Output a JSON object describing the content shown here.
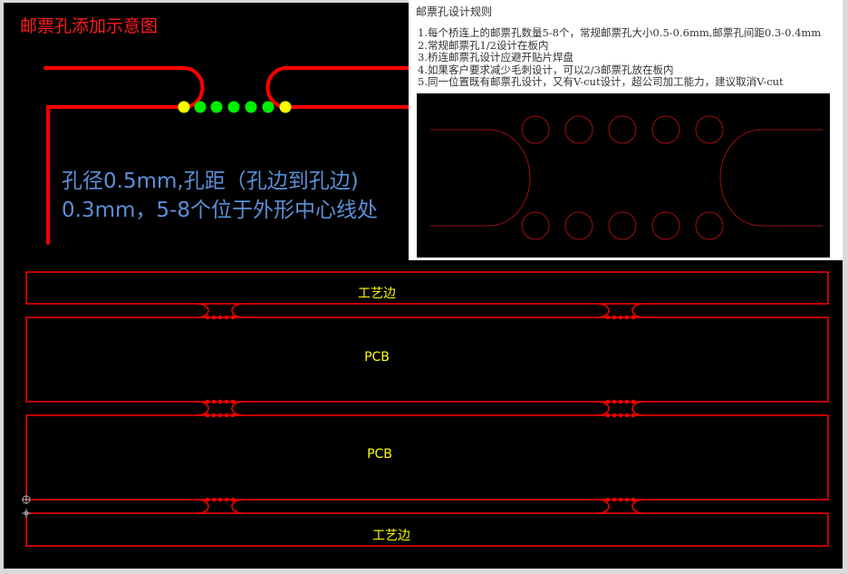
{
  "title": "邮票孔添加示意图",
  "spec": {
    "line1": "孔径0.5mm,孔距（孔边到孔边)",
    "line2": "0.3mm，5-8个位于外形中心线处"
  },
  "rules": {
    "heading": "邮票孔设计规则",
    "items": [
      "1.每个桥连上的邮票孔数量5-8个，常规邮票孔大小0.5-0.6mm,邮票孔间距0.3-0.4mm",
      "2.常规邮票孔1/2设计在板内",
      "3.桥连邮票孔设计应避开贴片焊盘",
      "4.如果客户要求减少毛刺设计，可以2/3邮票孔放在板内",
      "5.同一位置既有邮票孔设计，又有V-cut设计，超公司加工能力，建议取消V-cut"
    ]
  },
  "panel": {
    "labels": [
      "工艺边",
      "PCB",
      "PCB",
      "工艺边"
    ]
  },
  "colors": {
    "outline": "#ff0000",
    "hole": "#00ee00",
    "hole_overlap": "#ffff00",
    "label": "#ffff00",
    "spec_text": "#5b8fd6"
  }
}
